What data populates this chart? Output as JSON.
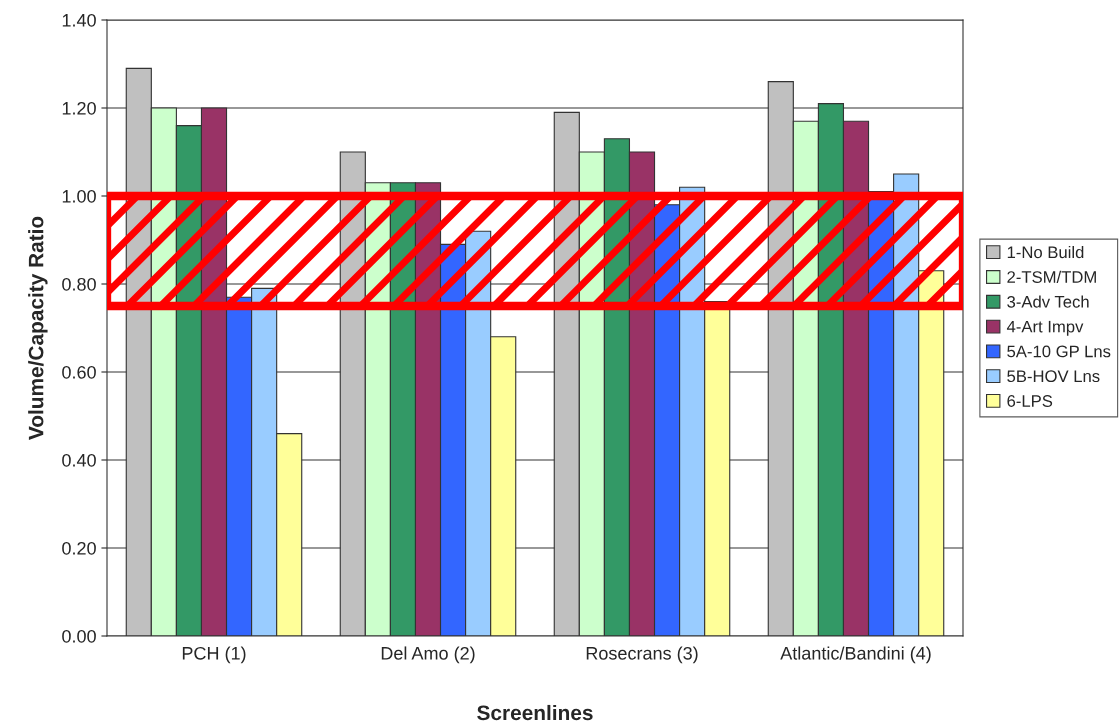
{
  "chart_data": {
    "type": "bar",
    "xlabel": "Screenlines",
    "ylabel": "Volume/Capacity Ratio",
    "categories": [
      "PCH (1)",
      "Del Amo (2)",
      "Rosecrans (3)",
      "Atlantic/Bandini (4)"
    ],
    "series": [
      {
        "name": "1-No Build",
        "color": "#c0c0c0",
        "values": [
          1.29,
          1.1,
          1.19,
          1.26
        ]
      },
      {
        "name": "2-TSM/TDM",
        "color": "#ccffcc",
        "values": [
          1.2,
          1.03,
          1.1,
          1.17
        ]
      },
      {
        "name": "3-Adv Tech",
        "color": "#339966",
        "values": [
          1.16,
          1.03,
          1.13,
          1.21
        ]
      },
      {
        "name": "4-Art Impv",
        "color": "#993366",
        "values": [
          1.2,
          1.03,
          1.1,
          1.17
        ]
      },
      {
        "name": "5A-10 GP Lns",
        "color": "#3366ff",
        "values": [
          0.77,
          0.89,
          0.98,
          1.01
        ]
      },
      {
        "name": "5B-HOV Lns",
        "color": "#99ccff",
        "values": [
          0.79,
          0.92,
          1.02,
          1.05
        ]
      },
      {
        "name": "6-LPS",
        "color": "#ffff99",
        "values": [
          0.46,
          0.68,
          0.76,
          0.83
        ]
      }
    ],
    "ylim": [
      0,
      1.4
    ],
    "yticks": [
      {
        "value": 0,
        "label": "0.00"
      },
      {
        "value": 0.2,
        "label": "0.20"
      },
      {
        "value": 0.4,
        "label": "0.40"
      },
      {
        "value": 0.6,
        "label": "0.60"
      },
      {
        "value": 0.8,
        "label": "0.80"
      },
      {
        "value": 1.0,
        "label": "1.00"
      },
      {
        "value": 1.2,
        "label": "1.20"
      },
      {
        "value": 1.4,
        "label": "1.40"
      }
    ],
    "bands": [
      {
        "axis": "y",
        "from": 0.75,
        "to": 1.0,
        "color": "#ff0000"
      }
    ],
    "grid": "y",
    "legend": "right"
  }
}
